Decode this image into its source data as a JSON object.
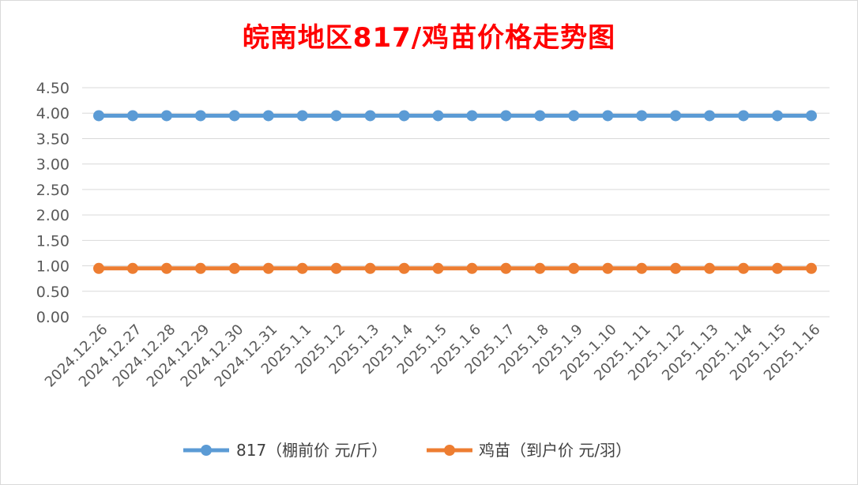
{
  "chart_data": {
    "type": "line",
    "title": "皖南地区817/鸡苗价格走势图",
    "categories": [
      "2024.12.26",
      "2024.12.27",
      "2024.12.28",
      "2024.12.29",
      "2024.12.30",
      "2024.12.31",
      "2025.1.1",
      "2025.1.2",
      "2025.1.3",
      "2025.1.4",
      "2025.1.5",
      "2025.1.6",
      "2025.1.7",
      "2025.1.8",
      "2025.1.9",
      "2025.1.10",
      "2025.1.11",
      "2025.1.12",
      "2025.1.13",
      "2025.1.14",
      "2025.1.15",
      "2025.1.16"
    ],
    "series": [
      {
        "name": "817（棚前价 元/斤）",
        "color": "#5b9bd5",
        "values": [
          3.95,
          3.95,
          3.95,
          3.95,
          3.95,
          3.95,
          3.95,
          3.95,
          3.95,
          3.95,
          3.95,
          3.95,
          3.95,
          3.95,
          3.95,
          3.95,
          3.95,
          3.95,
          3.95,
          3.95,
          3.95,
          3.95
        ]
      },
      {
        "name": "鸡苗（到户价 元/羽）",
        "color": "#ed7d31",
        "values": [
          0.95,
          0.95,
          0.95,
          0.95,
          0.95,
          0.95,
          0.95,
          0.95,
          0.95,
          0.95,
          0.95,
          0.95,
          0.95,
          0.95,
          0.95,
          0.95,
          0.95,
          0.95,
          0.95,
          0.95,
          0.95,
          0.95
        ]
      }
    ],
    "yticks": [
      "0.00",
      "0.50",
      "1.00",
      "1.50",
      "2.00",
      "2.50",
      "3.00",
      "3.50",
      "4.00",
      "4.50"
    ],
    "ylim": [
      0,
      4.5
    ],
    "grid": true,
    "legend_position": "bottom",
    "title_color": "#ff0000"
  }
}
